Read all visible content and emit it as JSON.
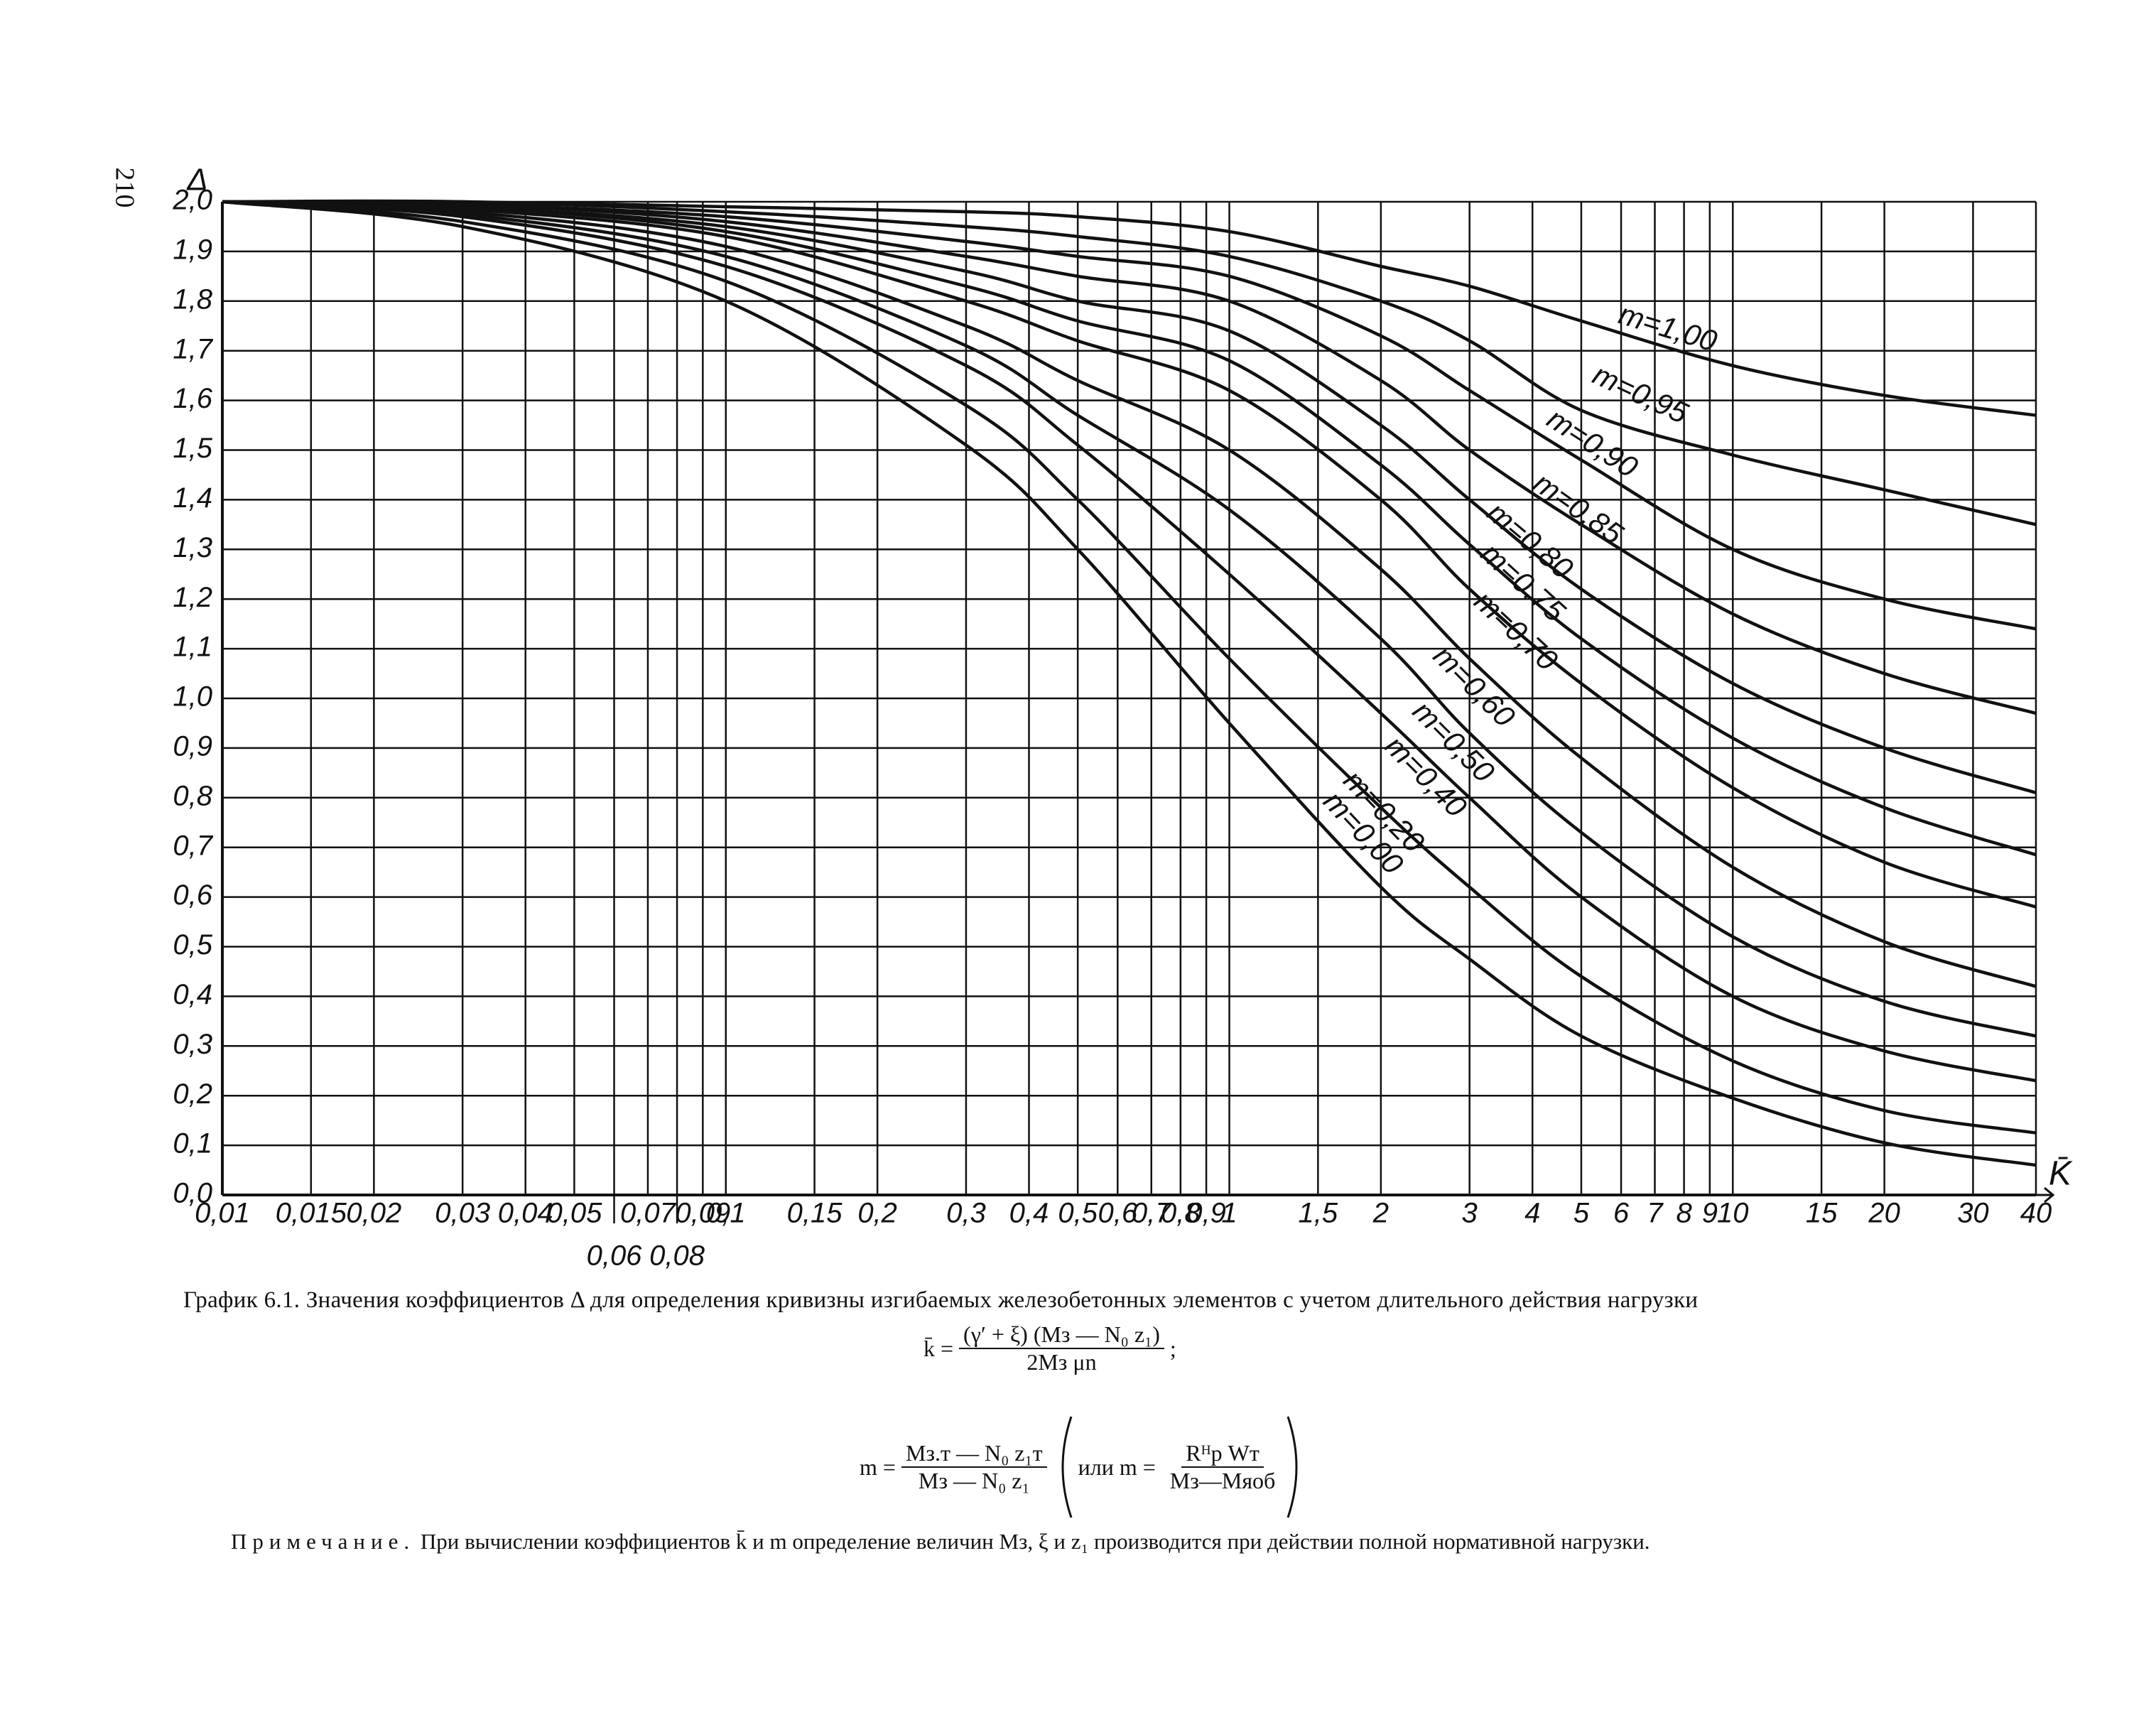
{
  "page_number": "210",
  "chart_data": {
    "type": "line",
    "y_label": "Δ",
    "x_label": "K̄",
    "log_x": true,
    "grid": true,
    "color": "#111111",
    "xlim": [
      0.01,
      40
    ],
    "ylim": [
      0,
      2
    ],
    "xticks": [
      {
        "value": 0.01,
        "label": "0,01"
      },
      {
        "value": 0.015,
        "label": "0,015"
      },
      {
        "value": 0.02,
        "label": "0,02"
      },
      {
        "value": 0.03,
        "label": "0,03"
      },
      {
        "value": 0.04,
        "label": "0,04"
      },
      {
        "value": 0.05,
        "label": "0,05"
      },
      {
        "value": 0.06,
        "label": "0,06"
      },
      {
        "value": 0.07,
        "label": "0,07"
      },
      {
        "value": 0.08,
        "label": "0,08"
      },
      {
        "value": 0.09,
        "label": "0,09"
      },
      {
        "value": 0.1,
        "label": "0,1"
      },
      {
        "value": 0.15,
        "label": "0,15"
      },
      {
        "value": 0.2,
        "label": "0,2"
      },
      {
        "value": 0.3,
        "label": "0,3"
      },
      {
        "value": 0.4,
        "label": "0,4"
      },
      {
        "value": 0.5,
        "label": "0,5"
      },
      {
        "value": 0.6,
        "label": "0,6"
      },
      {
        "value": 0.7,
        "label": "0,7"
      },
      {
        "value": 0.8,
        "label": "0,8"
      },
      {
        "value": 0.9,
        "label": "0,9"
      },
      1,
      {
        "value": 1.5,
        "label": "1,5"
      },
      2,
      3,
      4,
      5,
      6,
      7,
      8,
      9,
      10,
      15,
      20,
      30,
      40
    ],
    "yticks": [
      {
        "value": 0,
        "label": "0,0"
      },
      {
        "value": 0.1,
        "label": "0,1"
      },
      {
        "value": 0.2,
        "label": "0,2"
      },
      {
        "value": 0.3,
        "label": "0,3"
      },
      {
        "value": 0.4,
        "label": "0,4"
      },
      {
        "value": 0.5,
        "label": "0,5"
      },
      {
        "value": 0.6,
        "label": "0,6"
      },
      {
        "value": 0.7,
        "label": "0,7"
      },
      {
        "value": 0.8,
        "label": "0,8"
      },
      {
        "value": 0.9,
        "label": "0,9"
      },
      {
        "value": 1.0,
        "label": "1,0"
      },
      {
        "value": 1.1,
        "label": "1,1"
      },
      {
        "value": 1.2,
        "label": "1,2"
      },
      {
        "value": 1.3,
        "label": "1,3"
      },
      {
        "value": 1.4,
        "label": "1,4"
      },
      {
        "value": 1.5,
        "label": "1,5"
      },
      {
        "value": 1.6,
        "label": "1,6"
      },
      {
        "value": 1.7,
        "label": "1,7"
      },
      {
        "value": 1.8,
        "label": "1,8"
      },
      {
        "value": 1.9,
        "label": "1,9"
      },
      {
        "value": 2.0,
        "label": "2,0"
      }
    ],
    "x": [
      0.01,
      0.03,
      0.1,
      0.3,
      0.5,
      1,
      2,
      3,
      5,
      10,
      20,
      40
    ],
    "series": [
      {
        "name": "m=0,00",
        "values": [
          2.0,
          1.95,
          1.8,
          1.51,
          1.3,
          0.95,
          0.62,
          0.475,
          0.32,
          0.195,
          0.105,
          0.06
        ]
      },
      {
        "name": "m=0,20",
        "values": [
          2.0,
          1.96,
          1.84,
          1.59,
          1.4,
          1.08,
          0.78,
          0.62,
          0.44,
          0.27,
          0.17,
          0.125
        ]
      },
      {
        "name": "m=0,40",
        "values": [
          2.0,
          1.97,
          1.87,
          1.67,
          1.51,
          1.25,
          0.97,
          0.8,
          0.6,
          0.4,
          0.29,
          0.23
        ]
      },
      {
        "name": "m=0,50",
        "values": [
          2.0,
          1.975,
          1.89,
          1.71,
          1.57,
          1.38,
          1.12,
          0.93,
          0.73,
          0.52,
          0.39,
          0.32
        ]
      },
      {
        "name": "m=0,60",
        "values": [
          2.0,
          1.98,
          1.91,
          1.75,
          1.64,
          1.5,
          1.26,
          1.08,
          0.88,
          0.66,
          0.51,
          0.42
        ]
      },
      {
        "name": "m=0,70",
        "values": [
          2.0,
          1.985,
          1.93,
          1.8,
          1.72,
          1.62,
          1.4,
          1.22,
          1.03,
          0.82,
          0.67,
          0.58
        ]
      },
      {
        "name": "m=0,75",
        "values": [
          2.0,
          1.99,
          1.94,
          1.83,
          1.76,
          1.68,
          1.47,
          1.31,
          1.12,
          0.92,
          0.78,
          0.685
        ]
      },
      {
        "name": "m=0,80",
        "values": [
          2.0,
          1.99,
          1.95,
          1.86,
          1.8,
          1.74,
          1.55,
          1.4,
          1.22,
          1.03,
          0.9,
          0.81
        ]
      },
      {
        "name": "m=0,85",
        "values": [
          2.0,
          1.995,
          1.96,
          1.89,
          1.85,
          1.8,
          1.64,
          1.5,
          1.35,
          1.17,
          1.05,
          0.97
        ]
      },
      {
        "name": "m=0,90",
        "values": [
          2.0,
          1.995,
          1.97,
          1.92,
          1.89,
          1.85,
          1.73,
          1.62,
          1.48,
          1.3,
          1.2,
          1.14
        ]
      },
      {
        "name": "m=0,95",
        "values": [
          2.0,
          2.0,
          1.98,
          1.95,
          1.93,
          1.89,
          1.8,
          1.72,
          1.58,
          1.49,
          1.42,
          1.35
        ]
      },
      {
        "name": "m=1,00",
        "values": [
          2.0,
          2.0,
          1.99,
          1.98,
          1.97,
          1.94,
          1.87,
          1.83,
          1.76,
          1.67,
          1.61,
          1.57
        ]
      }
    ]
  },
  "caption": "График 6.1. Значения коэффициентов Δ для определения кривизны изгибаемых железобетонных элементов с учетом длительного действия нагрузки",
  "formulas": {
    "k": {
      "lhs": "k̄ =",
      "num": "(γ′ + ξ) (Mз — N₀ z₁)",
      "den": "2Mз μn",
      "end": ";"
    },
    "m": {
      "lhs": "m =",
      "num": "Mз.т — N₀ z₁т",
      "den": "Mз — N₀ z₁",
      "alt_lhs": "или m =",
      "alt_num": "Rᴴр Wт",
      "alt_den": "Mз—Mᴙоб"
    }
  },
  "note": {
    "lead": "Примечание.",
    "text": "При вычислении коэффициентов k̄ и m определение величин Mз, ξ и z₁ производится при действии полной нормативной нагрузки."
  }
}
